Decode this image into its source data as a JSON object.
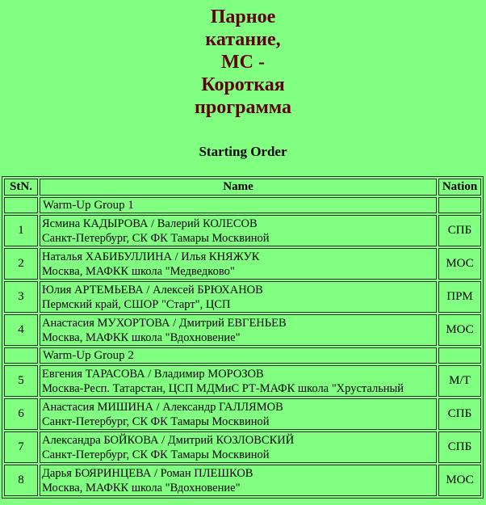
{
  "page": {
    "background_color": "#80FF80",
    "title_color": "#600000",
    "text_color": "#000000"
  },
  "title": "Парное\nкатание,\nМС -\nКороткая\nпрограмма",
  "subtitle": "Starting Order",
  "table": {
    "headers": {
      "stn": "StN.",
      "name": "Name",
      "nation": "Nation"
    },
    "rows": [
      {
        "type": "group",
        "label": "Warm-Up Group 1"
      },
      {
        "type": "skater",
        "stn": "1",
        "names": "Ясмина КАДЫРОВА / Валерий КОЛЕСОВ",
        "club": "Санкт-Петербург, СК ФК Тамары Москвиной",
        "nation": "СПБ"
      },
      {
        "type": "skater",
        "stn": "2",
        "names": "Наталья ХАБИБУЛЛИНА / Илья КНЯЖУК",
        "club": "Москва, МАФКК школа \"Медведково\"",
        "nation": "МОС"
      },
      {
        "type": "skater",
        "stn": "3",
        "names": "Юлия АРТЕМЬЕВА / Алексей БРЮХАНОВ",
        "club": "Пермский край, СШОР \"Старт\", ЦСП",
        "nation": "ПРМ"
      },
      {
        "type": "skater",
        "stn": "4",
        "names": "Анастасия МУХОРТОВА / Дмитрий ЕВГЕНЬЕВ",
        "club": "Москва, МАФКК школа \"Вдохновение\"",
        "nation": "МОС"
      },
      {
        "type": "group",
        "label": "Warm-Up Group 2"
      },
      {
        "type": "skater",
        "stn": "5",
        "names": "Евгения ТАРАСОВА / Владимир МОРОЗОВ",
        "club": "Москва-Респ. Татарстан, ЦСП МДМиС РТ-МАФК школа \"Хрустальный",
        "nation": "М/Т"
      },
      {
        "type": "skater",
        "stn": "6",
        "names": "Анастасия МИШИНА / Александр ГАЛЛЯМОВ",
        "club": "Санкт-Петербург, СК ФК Тамары Москвиной",
        "nation": "СПБ"
      },
      {
        "type": "skater",
        "stn": "7",
        "names": "Александра БОЙКОВА / Дмитрий КОЗЛОВСКИЙ",
        "club": "Санкт-Петербург, СК ФК Тамары Москвиной",
        "nation": "СПБ"
      },
      {
        "type": "skater",
        "stn": "8",
        "names": "Дарья БОЯРИНЦЕВА / Роман ПЛЕШКОВ",
        "club": "Москва, МАФКК школа \"Вдохновение\"",
        "nation": "МОС"
      }
    ]
  }
}
